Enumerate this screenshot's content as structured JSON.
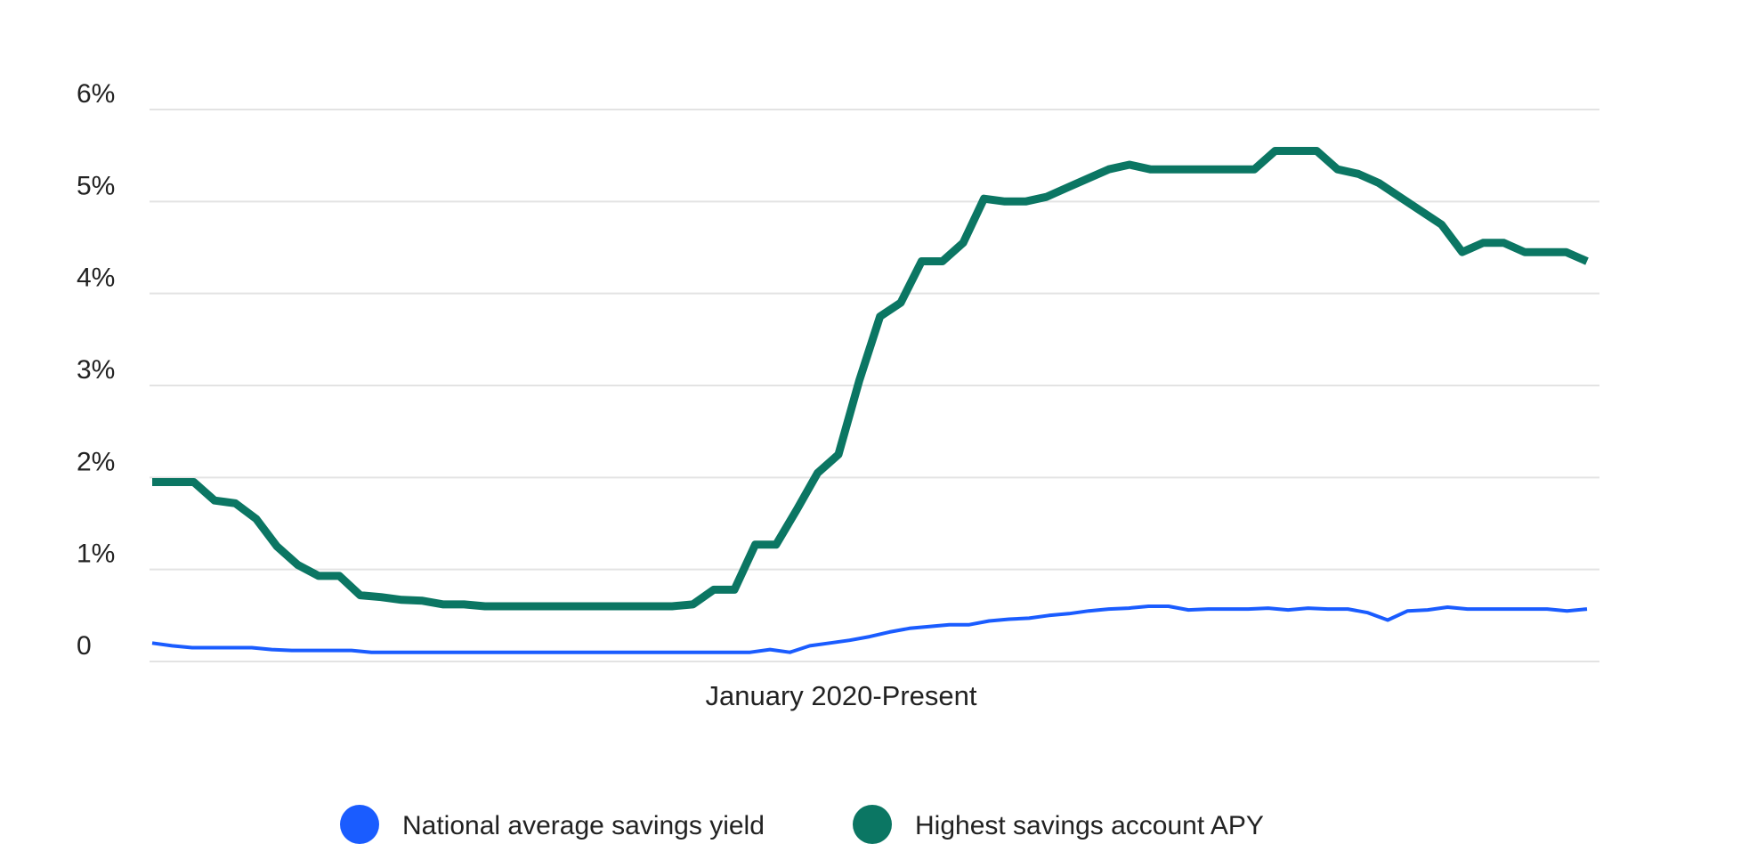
{
  "chart_data": {
    "type": "line",
    "title": "",
    "xlabel": "January 2020-Present",
    "ylabel": "",
    "y_ticks": [
      {
        "value": 0,
        "label": "0"
      },
      {
        "value": 1,
        "label": "1%"
      },
      {
        "value": 2,
        "label": "2%"
      },
      {
        "value": 3,
        "label": "3%"
      },
      {
        "value": 4,
        "label": "4%"
      },
      {
        "value": 5,
        "label": "5%"
      },
      {
        "value": 6,
        "label": "6%"
      }
    ],
    "ylim": [
      0,
      6
    ],
    "xlim": [
      0,
      68
    ],
    "grid": true,
    "legend_position": "bottom-center",
    "series": [
      {
        "name": "National average savings yield",
        "color": "#1a5cff",
        "values": [
          0.2,
          0.17,
          0.15,
          0.15,
          0.15,
          0.15,
          0.13,
          0.12,
          0.12,
          0.12,
          0.12,
          0.1,
          0.1,
          0.1,
          0.1,
          0.1,
          0.1,
          0.1,
          0.1,
          0.1,
          0.1,
          0.1,
          0.1,
          0.1,
          0.1,
          0.1,
          0.1,
          0.1,
          0.1,
          0.1,
          0.1,
          0.13,
          0.1,
          0.17,
          0.2,
          0.23,
          0.27,
          0.32,
          0.36,
          0.38,
          0.4,
          0.4,
          0.44,
          0.46,
          0.47,
          0.5,
          0.52,
          0.55,
          0.57,
          0.58,
          0.6,
          0.6,
          0.56,
          0.57,
          0.57,
          0.57,
          0.58,
          0.56,
          0.58,
          0.57,
          0.57,
          0.53,
          0.45,
          0.55,
          0.56,
          0.59,
          0.57,
          0.57,
          0.57,
          0.57,
          0.57,
          0.55,
          0.57
        ]
      },
      {
        "name": "Highest savings account APY",
        "color": "#0b7663",
        "values": [
          1.95,
          1.95,
          1.95,
          1.75,
          1.72,
          1.55,
          1.25,
          1.05,
          0.93,
          0.93,
          0.72,
          0.7,
          0.67,
          0.66,
          0.62,
          0.62,
          0.6,
          0.6,
          0.6,
          0.6,
          0.6,
          0.6,
          0.6,
          0.6,
          0.6,
          0.6,
          0.62,
          0.78,
          0.78,
          1.27,
          1.27,
          1.65,
          2.05,
          2.25,
          3.05,
          3.75,
          3.9,
          4.35,
          4.35,
          4.55,
          5.03,
          5.0,
          5.0,
          5.05,
          5.15,
          5.25,
          5.35,
          5.4,
          5.35,
          5.35,
          5.35,
          5.35,
          5.35,
          5.35,
          5.55,
          5.55,
          5.55,
          5.35,
          5.3,
          5.2,
          5.05,
          4.9,
          4.75,
          4.45,
          4.55,
          4.55,
          4.45,
          4.45,
          4.45,
          4.35
        ]
      }
    ]
  }
}
